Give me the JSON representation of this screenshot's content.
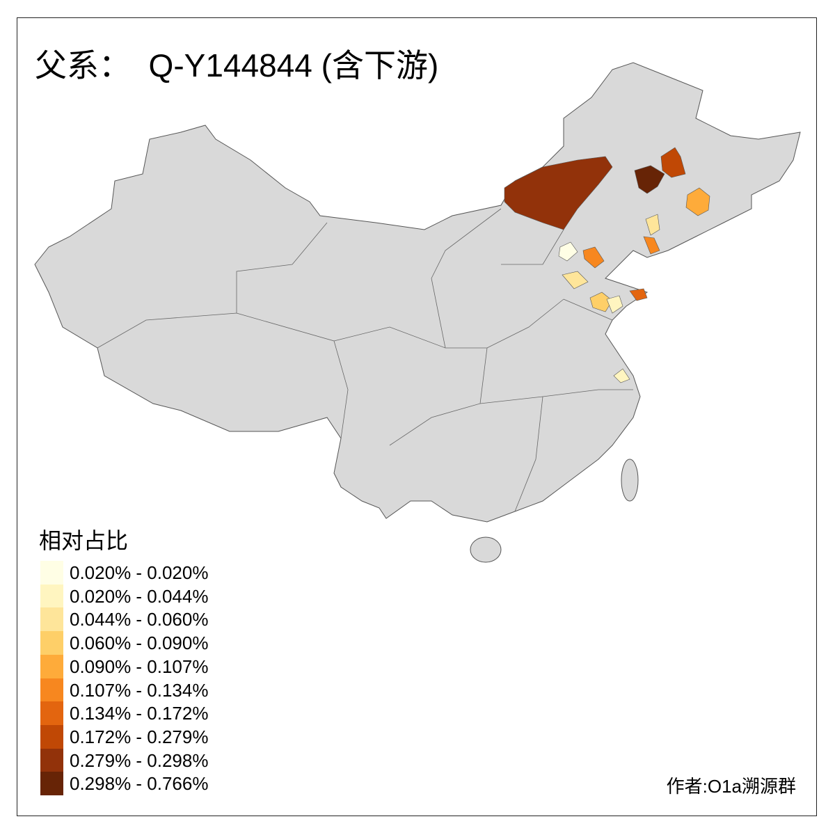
{
  "title": "父系：  Q-Y144844 (含下游)",
  "legend": {
    "title": "相对占比",
    "items": [
      {
        "label": "0.020% - 0.020%",
        "color": "#FFFEE5"
      },
      {
        "label": "0.020% - 0.044%",
        "color": "#FFF5C0"
      },
      {
        "label": "0.044% - 0.060%",
        "color": "#FEE59A"
      },
      {
        "label": "0.060% - 0.090%",
        "color": "#FECF68"
      },
      {
        "label": "0.090% - 0.107%",
        "color": "#FEAB3A"
      },
      {
        "label": "0.107% - 0.134%",
        "color": "#F7871F"
      },
      {
        "label": "0.134% - 0.172%",
        "color": "#E3650F"
      },
      {
        "label": "0.172% - 0.279%",
        "color": "#C04805"
      },
      {
        "label": "0.279% - 0.298%",
        "color": "#92320A"
      },
      {
        "label": "0.298% - 0.766%",
        "color": "#672406"
      }
    ]
  },
  "map": {
    "base_color": "#D9D9D9",
    "border_color": "#555555"
  },
  "credit": "作者:O1a溯源群"
}
